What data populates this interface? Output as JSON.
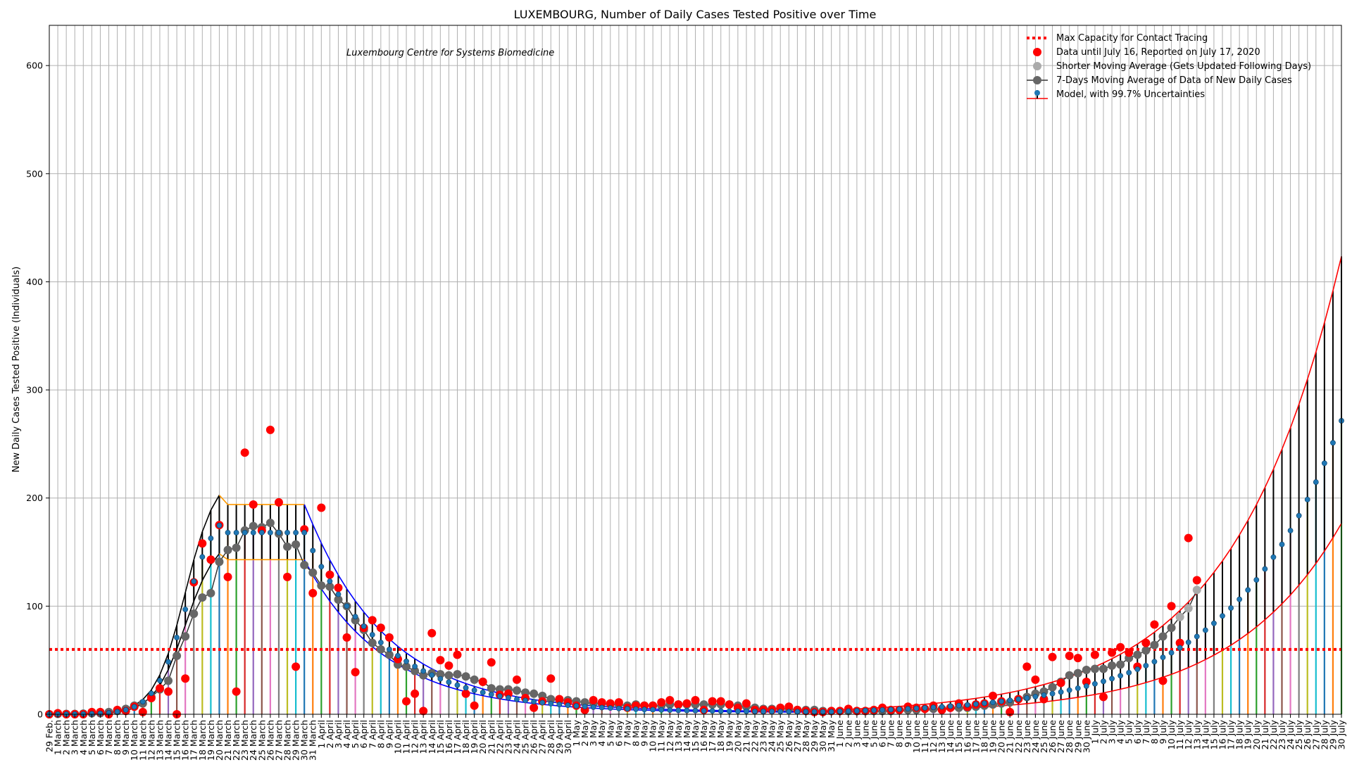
{
  "chart_data": {
    "type": "line",
    "title": "LUXEMBOURG, Number of Daily Cases Tested Positive over Time",
    "annotation": "Luxembourg Centre for Systems Biomedicine",
    "ylabel": "New Daily Cases Tested Positive (Individuals)",
    "xlabel": "",
    "ylim": [
      0,
      640
    ],
    "yticks": [
      0,
      100,
      200,
      300,
      400,
      500,
      600
    ],
    "grid": true,
    "legend_position": "top-right",
    "x_start": "29 Feb.",
    "x_labels_march": "March",
    "x_labels_april": "April",
    "x_labels_may": "May",
    "x_labels_june": "June",
    "x_labels_july": "July",
    "capacity_value": 60,
    "legend": [
      {
        "label": "Max Capacity for Contact Tracing",
        "color": "#ff0000"
      },
      {
        "label": "Data until July 16, Reported on July 17, 2020",
        "color": "#ff0000"
      },
      {
        "label": "Shorter Moving Average (Gets Updated Following Days)",
        "color": "#aaaaaa"
      },
      {
        "label": "7-Days Moving Average of Data of New Daily Cases",
        "color": "#666666"
      },
      {
        "label": "Model, with 99.7% Uncertainties",
        "color": "#1f77b4"
      }
    ],
    "series": [
      {
        "name": "Data until July 16, Reported on July 17, 2020",
        "note": "daily reported positives, index 0 = 29 Feb",
        "values": [
          0,
          1,
          0,
          0,
          0,
          2,
          2,
          0,
          4,
          3,
          7,
          2,
          15,
          24,
          21,
          0,
          33,
          122,
          158,
          143,
          175,
          127,
          21,
          242,
          194,
          170,
          263,
          196,
          127,
          44,
          171,
          112,
          191,
          129,
          117,
          71,
          39,
          80,
          87,
          80,
          71,
          51,
          12,
          19,
          3,
          75,
          50,
          45,
          55,
          19,
          8,
          30,
          48,
          18,
          19,
          32,
          15,
          6,
          12,
          33,
          14,
          11,
          8,
          4,
          13,
          11,
          10,
          11,
          6,
          8,
          8,
          8,
          11,
          13,
          9,
          10,
          13,
          4,
          12,
          12,
          9,
          6,
          10,
          4,
          4,
          4,
          6,
          7,
          4,
          3,
          2,
          2,
          3,
          3,
          5,
          3,
          3,
          4,
          6,
          4,
          4,
          7,
          6,
          5,
          8,
          4,
          6,
          10,
          7,
          9,
          10,
          17,
          12,
          2,
          14,
          44,
          32,
          14,
          53,
          29,
          54,
          52,
          30,
          55,
          16,
          57,
          62,
          57,
          44,
          66,
          83,
          31,
          100,
          66,
          163,
          124
        ]
      },
      {
        "name": "7-Days Moving Average of Data of New Daily Cases",
        "values": [
          0,
          0.3,
          0.3,
          0.3,
          0.6,
          0.9,
          1,
          2,
          3,
          5,
          8,
          10,
          16,
          23,
          31,
          54,
          72,
          93,
          108,
          112,
          141,
          152,
          154,
          170,
          174,
          173,
          177,
          167,
          155,
          157,
          138,
          131,
          119,
          118,
          106,
          100,
          87,
          78,
          66,
          60,
          55,
          46,
          44,
          40,
          36,
          38,
          37,
          36,
          37,
          35,
          32,
          30,
          24,
          23,
          23,
          22,
          20,
          19,
          17,
          14,
          13,
          13,
          12,
          11,
          10,
          10,
          9,
          9,
          8,
          9,
          8,
          8,
          8,
          9,
          9,
          9,
          9,
          9,
          9,
          9,
          9,
          8,
          7,
          6,
          5,
          5,
          5,
          5,
          4,
          4,
          4,
          3,
          3,
          3,
          3,
          3,
          3,
          3,
          3,
          3,
          4,
          4,
          4,
          5,
          5,
          5,
          6,
          6,
          6,
          7,
          8,
          9,
          10,
          11,
          14,
          16,
          19,
          21,
          25,
          30,
          36,
          38,
          41,
          42,
          42,
          45,
          46,
          52,
          55,
          59,
          64,
          72,
          80,
          90,
          98,
          115
        ]
      }
    ]
  }
}
